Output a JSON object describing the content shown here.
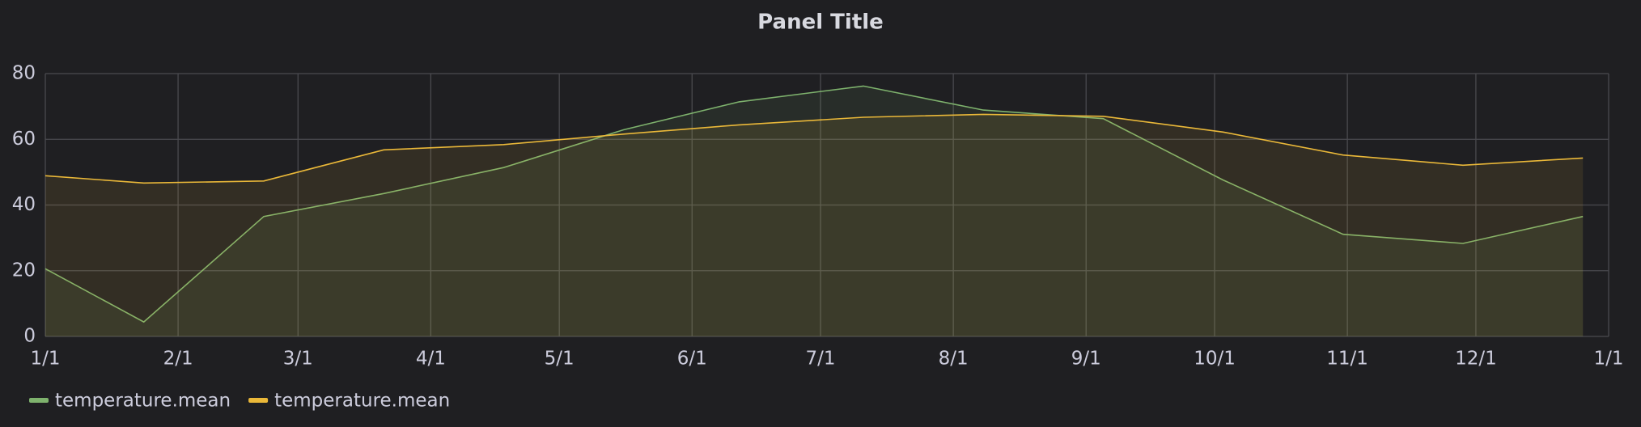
{
  "chart_data": {
    "type": "line",
    "title": "Panel Title",
    "x": [
      "1/1",
      "1/24",
      "2/21",
      "3/21",
      "4/18",
      "5/16",
      "6/12",
      "7/11",
      "8/8",
      "9/5",
      "10/3",
      "10/31",
      "11/28",
      "12/26"
    ],
    "series": [
      {
        "name": "temperature.mean",
        "color": "#7eb26d",
        "values": [
          20.6,
          4.4,
          36.5,
          43.5,
          51.4,
          62.9,
          71.4,
          76.2,
          68.9,
          66.3,
          47.6,
          31.1,
          28.3,
          36.5
        ]
      },
      {
        "name": "temperature.mean",
        "color": "#eab839",
        "values": [
          48.9,
          46.7,
          47.3,
          56.8,
          58.4,
          61.6,
          64.4,
          66.7,
          67.6,
          67.0,
          62.2,
          55.2,
          52.1,
          54.3
        ]
      }
    ],
    "xlim": [
      "1/1",
      "1/1"
    ],
    "xticks": [
      "1/1",
      "2/1",
      "3/1",
      "4/1",
      "5/1",
      "6/1",
      "7/1",
      "8/1",
      "9/1",
      "10/1",
      "11/1",
      "12/1",
      "1/1"
    ],
    "ylim": [
      0,
      80
    ],
    "yticks": [
      0,
      20,
      40,
      60,
      80
    ],
    "grid": true,
    "fill": true,
    "legend": "bottom-left"
  }
}
